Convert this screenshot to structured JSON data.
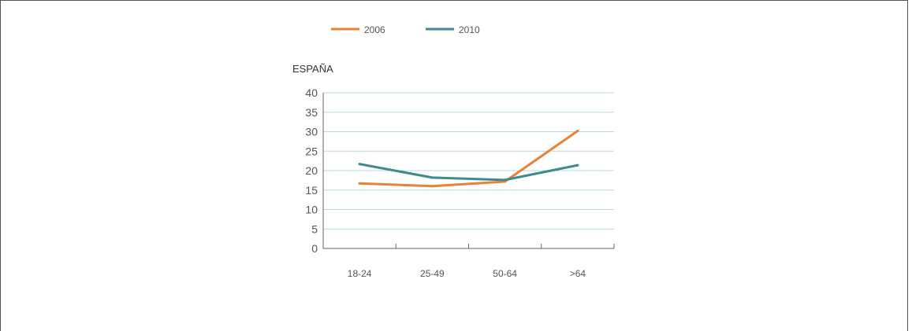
{
  "chart_data": {
    "type": "line",
    "title": "ESPAÑA",
    "categories": [
      "18-24",
      "25-49",
      "50-64",
      ">64"
    ],
    "series": [
      {
        "name": "2006",
        "color": "#e8823a",
        "values": [
          16.7,
          16,
          17.2,
          30.2
        ]
      },
      {
        "name": "2010",
        "color": "#3f8a8c",
        "values": [
          21.7,
          18.2,
          17.6,
          21.4
        ]
      }
    ],
    "y_ticks": [
      0,
      5,
      10,
      15,
      20,
      25,
      30,
      35,
      40
    ],
    "ylim": [
      0,
      40
    ],
    "grid": true,
    "legend_position": "top"
  }
}
